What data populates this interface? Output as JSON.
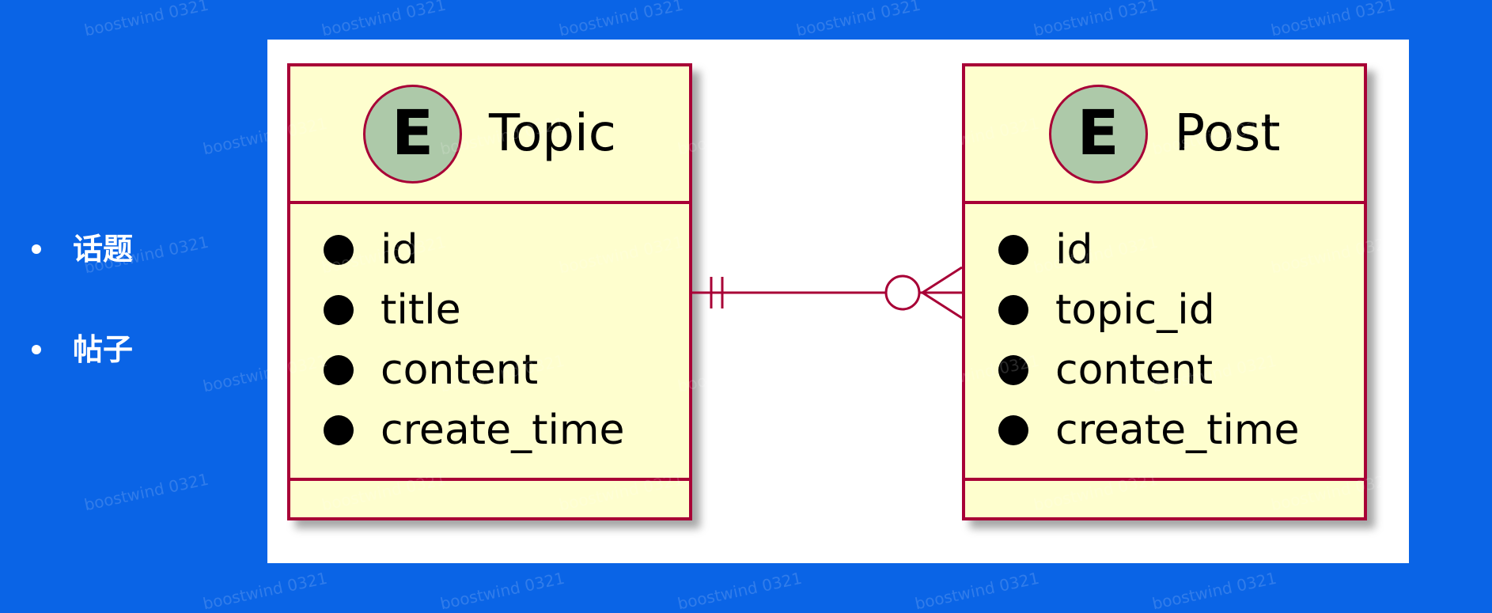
{
  "bullets": {
    "items": [
      "话题",
      "帖子"
    ]
  },
  "watermark": {
    "text": "boostwind 0321"
  },
  "diagram": {
    "entities": [
      {
        "badge": "E",
        "name": "Topic",
        "attributes": [
          "id",
          "title",
          "content",
          "create_time"
        ]
      },
      {
        "badge": "E",
        "name": "Post",
        "attributes": [
          "id",
          "topic_id",
          "content",
          "create_time"
        ]
      }
    ],
    "relationship": {
      "from": "Topic",
      "to": "Post",
      "from_cardinality": "exactly-one",
      "to_cardinality": "zero-or-many"
    }
  },
  "colors": {
    "background": "#0a64e6",
    "entity_fill": "#fefece",
    "entity_border": "#a80036",
    "badge_fill": "#adc9a9"
  }
}
